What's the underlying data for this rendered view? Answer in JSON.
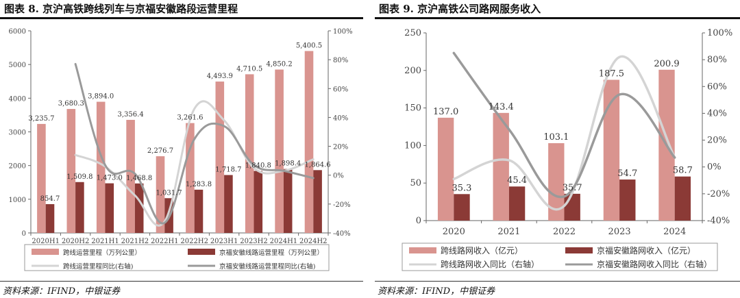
{
  "charts": [
    {
      "title": "图表 8. 京沪高铁跨线列车与京福安徽路段运营里程",
      "source": "资料来源：IFIND，中银证券",
      "chart_data": {
        "type": "bar",
        "categories": [
          "2020H1",
          "2020H2",
          "2021H1",
          "2021H2",
          "2022H1",
          "2022H2",
          "2023H1",
          "2023H2",
          "2024H1",
          "2024H2"
        ],
        "ylim": [
          0,
          6000
        ],
        "yticks": [
          "0",
          "1000",
          "2000",
          "3000",
          "4000",
          "5000",
          "6000"
        ],
        "y2lim": [
          -0.4,
          1.0
        ],
        "y2ticks": [
          "-40%",
          "-20%",
          "0%",
          "20%",
          "40%",
          "60%",
          "80%",
          "100%"
        ],
        "grid": false,
        "legend_position": "bottom",
        "series": [
          {
            "name": "跨线运营里程（万列公里）",
            "kind": "bar",
            "axis": "left",
            "color": "#d9948f",
            "values": [
              3235.7,
              3680.3,
              3894.0,
              3356.4,
              2276.7,
              3261.6,
              4493.9,
              4710.5,
              4850.2,
              5400.5
            ],
            "labels": [
              "3,235.7",
              "3,680.3",
              "3,894.0",
              "3,356.4",
              "2,276.7",
              "3,261.6",
              "4,493.9",
              "4,710.5",
              "4,850.2",
              "5,400.5"
            ]
          },
          {
            "name": "京福安徽线路运营里程（万列公里）",
            "kind": "bar",
            "axis": "left",
            "color": "#8b3a36",
            "values": [
              854.7,
              1509.8,
              1473.0,
              1468.8,
              1031.7,
              1283.8,
              1718.7,
              1840.8,
              1898.4,
              1864.6
            ],
            "labels": [
              "854.7",
              "1,509.8",
              "1,473.0",
              "1,468.8",
              "1,031.7",
              "1,283.8",
              "1,718.7",
              "1,840.8",
              "1,898.4",
              "1,864.6"
            ]
          },
          {
            "name": "跨线运营里程同比(右轴)",
            "kind": "line",
            "axis": "right",
            "color": "#d4d4d4",
            "values": [
              null,
              0.14,
              0.06,
              -0.14,
              -0.32,
              0.46,
              0.38,
              0.05,
              0.03,
              0.11
            ]
          },
          {
            "name": "京福安徽线路运营里程同比(右轴)",
            "kind": "line",
            "axis": "right",
            "color": "#9a9a9a",
            "values": [
              null,
              0.77,
              0.07,
              0.01,
              -0.33,
              0.25,
              0.34,
              0.07,
              0.03,
              -0.02
            ]
          }
        ]
      }
    },
    {
      "title": "图表 9. 京沪高铁公司路网服务收入",
      "source": "资料来源：IFIND，中银证券",
      "chart_data": {
        "type": "bar",
        "categories": [
          "2020",
          "2021",
          "2022",
          "2023",
          "2024"
        ],
        "ylim": [
          0,
          250
        ],
        "yticks": [
          "0",
          "50",
          "100",
          "150",
          "200",
          "250"
        ],
        "y2lim": [
          -0.4,
          1.0
        ],
        "y2ticks": [
          "-40%",
          "-20%",
          "0%",
          "20%",
          "40%",
          "60%",
          "80%",
          "100%"
        ],
        "grid": false,
        "legend_position": "bottom",
        "series": [
          {
            "name": "跨线路网收入（亿元）",
            "kind": "bar",
            "axis": "left",
            "color": "#d9948f",
            "values": [
              137.0,
              143.4,
              103.1,
              187.5,
              200.9
            ],
            "labels": [
              "137.0",
              "143.4",
              "103.1",
              "187.5",
              "200.9"
            ]
          },
          {
            "name": "京福安徽路网收入（亿元）",
            "kind": "bar",
            "axis": "left",
            "color": "#8b3a36",
            "values": [
              35.3,
              45.4,
              35.7,
              54.7,
              58.7
            ],
            "labels": [
              "35.3",
              "45.4",
              "35.7",
              "54.7",
              "58.7"
            ]
          },
          {
            "name": "跨线路网收入同比（右轴）",
            "kind": "line",
            "axis": "right",
            "color": "#d4d4d4",
            "values": [
              -0.09,
              0.05,
              -0.29,
              0.82,
              0.07
            ]
          },
          {
            "name": "京福安徽路网收入同比（右轴）",
            "kind": "line",
            "axis": "right",
            "color": "#9a9a9a",
            "values": [
              0.85,
              0.28,
              -0.22,
              0.54,
              0.07
            ]
          }
        ]
      }
    }
  ]
}
